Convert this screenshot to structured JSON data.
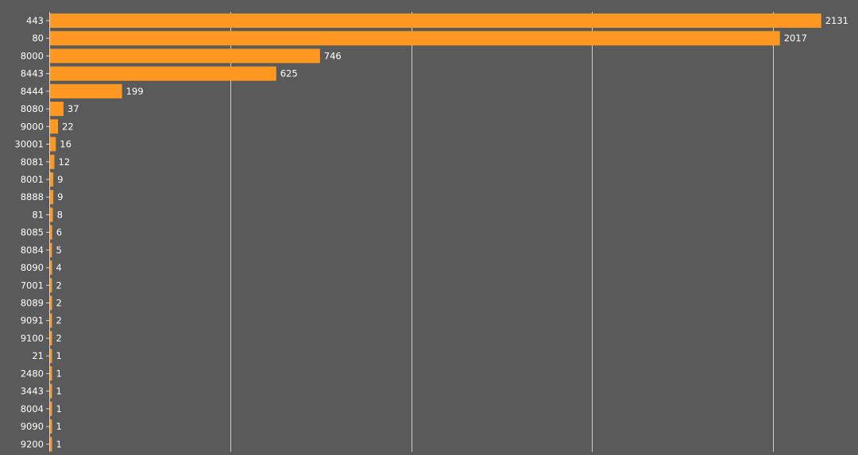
{
  "chart_data": {
    "type": "bar",
    "orientation": "horizontal",
    "categories": [
      "443",
      "80",
      "8000",
      "8443",
      "8444",
      "8080",
      "9000",
      "30001",
      "8081",
      "8001",
      "8888",
      "81",
      "8085",
      "8084",
      "8090",
      "7001",
      "8089",
      "9091",
      "9100",
      "21",
      "2480",
      "3443",
      "8004",
      "9090",
      "9200"
    ],
    "values": [
      2131,
      2017,
      746,
      625,
      199,
      37,
      22,
      16,
      12,
      9,
      9,
      8,
      6,
      5,
      4,
      2,
      2,
      2,
      2,
      1,
      1,
      1,
      1,
      1,
      1
    ],
    "xlim": [
      0,
      2200
    ],
    "grid_lines": [
      500,
      1000,
      1500,
      2000
    ],
    "grid": true,
    "data_labels": true,
    "title": "",
    "xlabel": "",
    "ylabel": ""
  },
  "colors": {
    "background": "#5a5a5a",
    "bar": "#ff9820",
    "grid": "#cfcfcf",
    "axis": "#d8d8d8",
    "text": "#ffffff"
  }
}
